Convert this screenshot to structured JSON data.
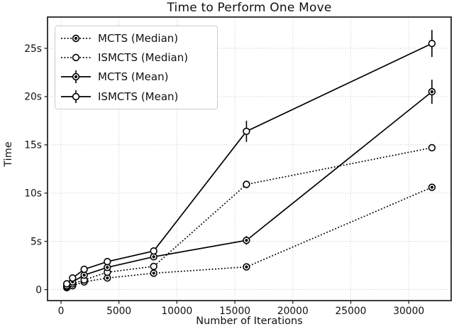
{
  "chart_data": {
    "type": "line",
    "title": "Time to Perform One Move",
    "xlabel": "Number of Iterations",
    "ylabel": "Time",
    "x": [
      500,
      1000,
      2000,
      4000,
      8000,
      16000,
      32000
    ],
    "xlim": [
      -1160,
      33660
    ],
    "ylim": [
      -1.14,
      28.24
    ],
    "x_ticks": {
      "values": [
        0,
        5000,
        10000,
        15000,
        20000,
        25000,
        30000
      ],
      "labels": [
        "0",
        "5000",
        "10000",
        "15000",
        "20000",
        "25000",
        "30000"
      ]
    },
    "y_ticks": {
      "values": [
        0,
        5,
        10,
        15,
        20,
        25
      ],
      "labels": [
        "0",
        "5s",
        "10s",
        "15s",
        "20s",
        "25s"
      ]
    },
    "grid": true,
    "legend": {
      "position": "upper-left"
    },
    "series": [
      {
        "name": "MCTS (Median)",
        "line": "dotted",
        "marker": "filled",
        "values": [
          0.2,
          0.4,
          0.8,
          1.2,
          1.7,
          2.35,
          10.6
        ]
      },
      {
        "name": "ISMCTS (Median)",
        "line": "dotted",
        "marker": "open",
        "values": [
          0.3,
          0.6,
          1.0,
          1.8,
          2.4,
          10.9,
          14.7
        ]
      },
      {
        "name": "MCTS (Mean)",
        "line": "solid",
        "marker": "filled",
        "values": [
          0.4,
          0.8,
          1.5,
          2.3,
          3.4,
          5.1,
          20.5
        ],
        "yerr": [
          0.08,
          0.1,
          0.18,
          0.25,
          0.3,
          0.45,
          1.25
        ]
      },
      {
        "name": "ISMCTS (Mean)",
        "line": "solid",
        "marker": "open",
        "values": [
          0.6,
          1.2,
          2.1,
          2.9,
          4.0,
          16.4,
          25.5
        ],
        "yerr": [
          0.1,
          0.15,
          0.25,
          0.35,
          0.35,
          1.1,
          1.4
        ]
      }
    ],
    "colors": {
      "line": "#000000",
      "grid": "#bbbbbb",
      "frame": "#262626",
      "tick_text": "#111111",
      "background": "#ffffff"
    }
  }
}
